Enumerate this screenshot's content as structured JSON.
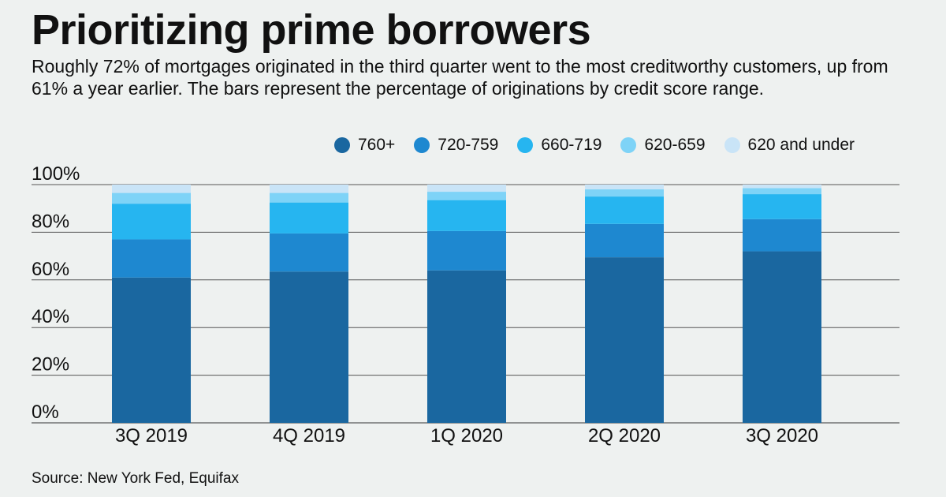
{
  "header": {
    "title": "Prioritizing prime borrowers",
    "subtitle": "Roughly 72% of mortgages originated in the third quarter went to the most creditworthy customers, up from 61% a year earlier. The bars represent the percentage of originations by credit score range."
  },
  "footer": {
    "source": "Source: New York Fed, Equifax"
  },
  "chart_data": {
    "type": "bar",
    "stacked": true,
    "title": "Prioritizing prime borrowers",
    "xlabel": "",
    "ylabel": "",
    "ylim": [
      0,
      100
    ],
    "yticks": [
      0,
      20,
      40,
      60,
      80,
      100
    ],
    "ytick_labels": [
      "0%",
      "20%",
      "40%",
      "60%",
      "80%",
      "100%"
    ],
    "grid": true,
    "legend_position": "top-right",
    "categories": [
      "3Q 2019",
      "4Q 2019",
      "1Q 2020",
      "2Q 2020",
      "3Q 2020"
    ],
    "series": [
      {
        "name": "760+",
        "color": "#1a67a0",
        "values": [
          61,
          63.5,
          64,
          69.5,
          72
        ]
      },
      {
        "name": "720-759",
        "color": "#1e88d0",
        "values": [
          16,
          16,
          16.5,
          14,
          13.5
        ]
      },
      {
        "name": "660-719",
        "color": "#26b5f0",
        "values": [
          15,
          13,
          13,
          11.5,
          10.5
        ]
      },
      {
        "name": "620-659",
        "color": "#7ed3f7",
        "values": [
          4.5,
          4,
          3.5,
          3,
          2.5
        ]
      },
      {
        "name": "620 and under",
        "color": "#c9e4f7",
        "values": [
          3.5,
          3.5,
          3,
          2,
          1.5
        ]
      }
    ]
  }
}
